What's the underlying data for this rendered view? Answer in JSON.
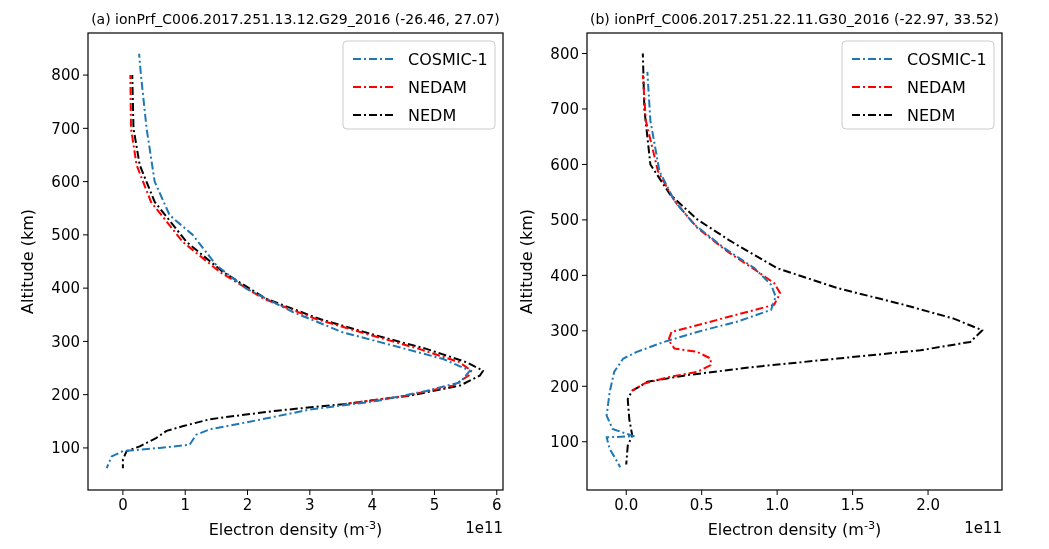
{
  "chart_data": [
    {
      "type": "line",
      "title": "(a) ionPrf_C006.2017.251.13.12.G29_2016 (-26.46, 27.07)",
      "xlabel": "Electron density (m$^{-3}$)",
      "ylabel": "Altitude (km)",
      "annotations": [
        "1e11"
      ],
      "xlim": [
        -0.56,
        6.1
      ],
      "ylim": [
        21,
        879
      ],
      "xticks": [
        0,
        1,
        2,
        3,
        4,
        5,
        6
      ],
      "yticks": [
        100,
        200,
        300,
        400,
        500,
        600,
        700,
        800
      ],
      "legend": "top right",
      "line_style": "dashdot",
      "grid": false,
      "series": [
        {
          "name": "COSMIC-1",
          "color": "#1f77b4",
          "x": [
            0.26,
            0.29,
            0.38,
            0.51,
            0.75,
            1.12,
            1.5,
            1.98,
            2.73,
            3.53,
            4.34,
            5.14,
            5.57,
            5.41,
            4.87,
            4.07,
            3.0,
            2.2,
            1.4,
            1.18,
            1.07,
            0.59,
            0.0,
            -0.18,
            -0.26
          ],
          "values": [
            840,
            800,
            700,
            600,
            537,
            500,
            443,
            399,
            355,
            317,
            292,
            267,
            245,
            223,
            207,
            188,
            172,
            153,
            135,
            125,
            106,
            100,
            94,
            84,
            62
          ]
        },
        {
          "name": "NEDAM",
          "color": "#ff0000",
          "x": [
            0.12,
            0.13,
            0.22,
            0.45,
            0.96,
            1.56,
            2.26,
            3.1,
            4.0,
            4.75,
            5.4,
            5.59,
            5.55,
            5.3,
            4.55,
            3.53
          ],
          "values": [
            800,
            700,
            631,
            562,
            487,
            430,
            380,
            342,
            311,
            286,
            261,
            245,
            236,
            217,
            198,
            182
          ]
        },
        {
          "name": "NEDM",
          "color": "#000000",
          "x": [
            0.15,
            0.17,
            0.27,
            0.51,
            1.02,
            1.61,
            2.3,
            3.16,
            4.07,
            4.87,
            5.51,
            5.78,
            5.73,
            5.41,
            4.6,
            3.53,
            2.47,
            1.4,
            0.97,
            0.7,
            0.54,
            0.27,
            0.06,
            0.0,
            0.0
          ],
          "values": [
            800,
            700,
            631,
            562,
            487,
            430,
            380,
            342,
            311,
            286,
            261,
            245,
            236,
            217,
            198,
            182,
            170,
            154,
            141,
            132,
            119,
            103,
            94,
            78,
            62
          ]
        }
      ]
    },
    {
      "type": "line",
      "title": "(b) ionPrf_C006.2017.251.22.11.G30_2016 (-22.97, 33.52)",
      "xlabel": "Electron density (m$^{-3}$)",
      "ylabel": "Altitude (km)",
      "annotations": [
        "1e11"
      ],
      "xlim": [
        -0.26,
        2.49
      ],
      "ylim": [
        13,
        837
      ],
      "xticks": [
        {
          "value": 0,
          "label": "0.0"
        },
        0.5,
        {
          "value": 1,
          "label": "1.0"
        },
        1.5,
        {
          "value": 2,
          "label": "2.0"
        }
      ],
      "yticks": [
        100,
        200,
        300,
        400,
        500,
        600,
        700,
        800
      ],
      "legend": "top right",
      "line_style": "dashdot",
      "grid": false,
      "series": [
        {
          "name": "COSMIC-1",
          "color": "#1f77b4",
          "x": [
            0.14,
            0.16,
            0.22,
            0.32,
            0.45,
            0.65,
            0.85,
            0.96,
            0.99,
            0.96,
            0.74,
            0.47,
            0.25,
            0.07,
            -0.02,
            -0.08,
            -0.11,
            -0.13,
            -0.09,
            0.05,
            -0.13,
            -0.11,
            -0.07,
            -0.04
          ],
          "values": [
            767,
            679,
            588,
            534,
            492,
            449,
            413,
            383,
            362,
            338,
            317,
            298,
            280,
            262,
            250,
            226,
            189,
            147,
            123,
            110,
            108,
            87,
            69,
            54
          ]
        },
        {
          "name": "NEDAM",
          "color": "#ff0000",
          "x": [
            0.11,
            0.13,
            0.21,
            0.32,
            0.47,
            0.67,
            0.87,
            0.98,
            1.02,
            0.98,
            0.73,
            0.47,
            0.3,
            0.28,
            0.32,
            0.47,
            0.56,
            0.56,
            0.47,
            0.29,
            0.12,
            0.04
          ],
          "values": [
            761,
            679,
            588,
            534,
            486,
            443,
            407,
            386,
            368,
            347,
            329,
            310,
            298,
            283,
            268,
            262,
            250,
            238,
            226,
            217,
            205,
            192
          ]
        },
        {
          "name": "NEDM",
          "color": "#000000",
          "x": [
            0.11,
            0.12,
            0.16,
            0.29,
            0.47,
            0.69,
            1.0,
            1.4,
            1.84,
            2.17,
            2.36,
            2.28,
            1.95,
            1.4,
            0.85,
            0.4,
            0.14,
            0.04,
            0.01,
            0.02,
            0.04,
            0.01,
            0.0
          ],
          "values": [
            800,
            700,
            600,
            546,
            501,
            462,
            413,
            377,
            347,
            322,
            301,
            280,
            265,
            250,
            235,
            220,
            208,
            192,
            177,
            141,
            111,
            93,
            59
          ]
        }
      ]
    }
  ]
}
